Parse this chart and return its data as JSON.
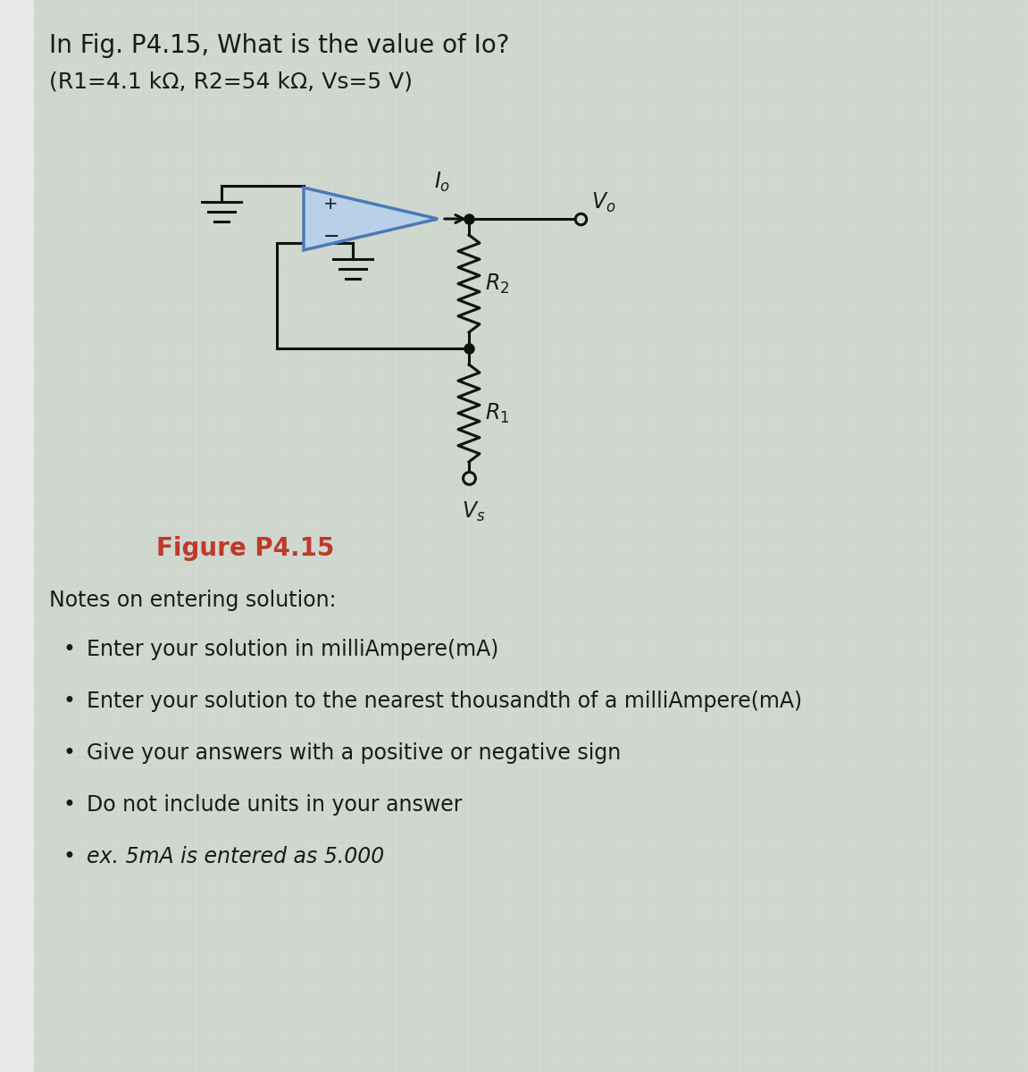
{
  "title_line1": "In Fig. P4.15, What is the value of Io?",
  "title_line2": "(R1=4.1 kΩ, R2=54 kΩ, Vs=5 V)",
  "figure_label": "Figure P4.15",
  "notes_header": "Notes on entering solution:",
  "bullets": [
    "Enter your solution in milliAmpere(mA)",
    "Enter your solution to the nearest thousandth of a milliAmpere(mA)",
    "Give your answers with a positive or negative sign",
    "Do not include units in your answer",
    "ex. 5mA is entered as 5.000"
  ],
  "bg_color_left": "#f0f0f0",
  "bg_color_right": "#c8cfc8",
  "text_color": "#1a1a1a",
  "figure_label_color": "#c0392b",
  "lc": "#111111",
  "lw": 2.2,
  "opamp_fill": "#b8d0e8",
  "opamp_edge": "#4a7ab5"
}
